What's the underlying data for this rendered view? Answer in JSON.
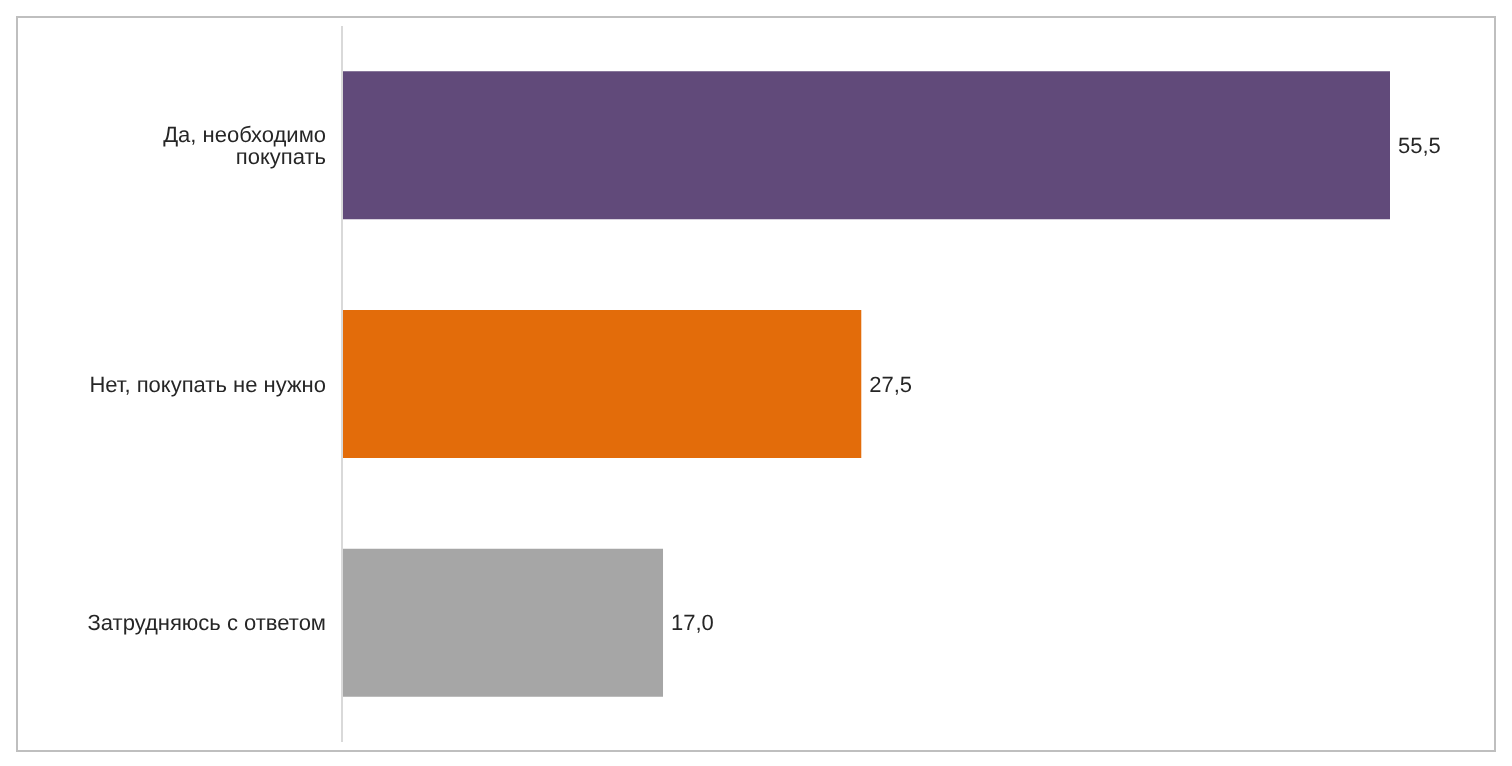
{
  "chart_data": {
    "type": "bar",
    "orientation": "horizontal",
    "categories": [
      "Да, необходимо покупать",
      "Нет, покупать не нужно",
      "Затрудняюсь с ответом"
    ],
    "values": [
      55.5,
      27.5,
      17.0
    ],
    "colors": [
      "#614a7a",
      "#e36c0a",
      "#a6a6a6"
    ],
    "value_labels": [
      "55,5",
      "27,5",
      "17,0"
    ],
    "grid": false,
    "legend": false
  }
}
